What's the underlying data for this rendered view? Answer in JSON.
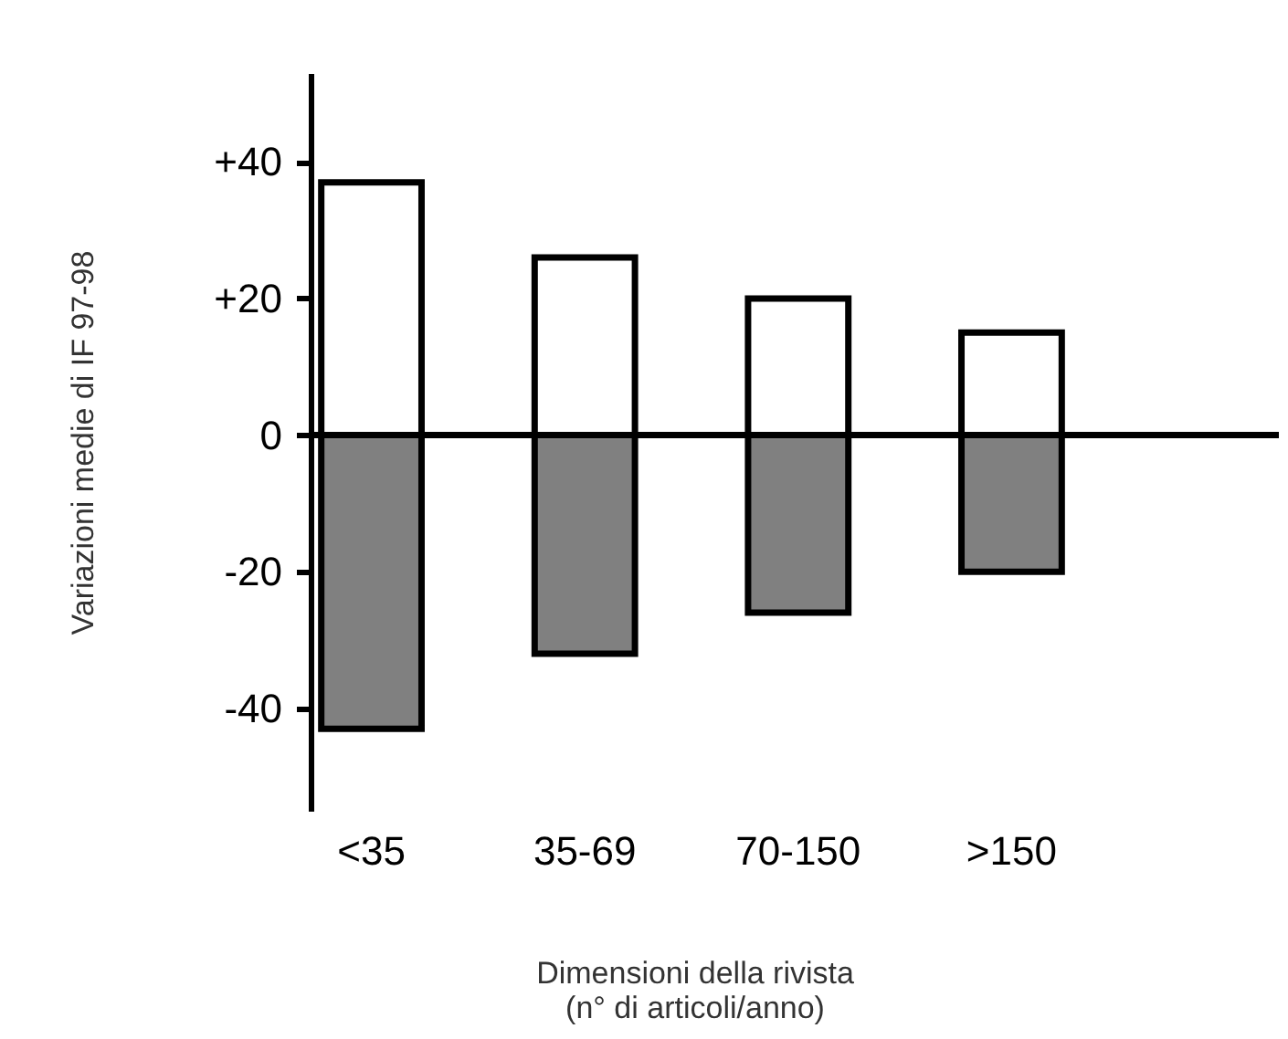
{
  "chart_data": {
    "type": "bar",
    "stacked": true,
    "xlabel": "Dimensioni della rivista\n(n° di articoli/anno)",
    "ylabel": "Variazioni medie di IF 97-98",
    "categories": [
      "<35",
      "35-69",
      "70-150",
      ">150"
    ],
    "series": [
      {
        "color": "#ffffff",
        "values": [
          37,
          26,
          20,
          15
        ]
      },
      {
        "color": "#808080",
        "values": [
          -43,
          -32,
          -26,
          -20
        ]
      }
    ],
    "ylim": [
      -55,
      53
    ],
    "yticks": [
      {
        "value": -40,
        "label": "-40"
      },
      {
        "value": -20,
        "label": "-20"
      },
      {
        "value": 0,
        "label": "0"
      },
      {
        "value": 20,
        "label": "+20"
      },
      {
        "value": 40,
        "label": "+40"
      }
    ],
    "ref_lines": [
      {
        "axis": "y",
        "value": 0
      }
    ],
    "grid": false,
    "legend": false
  }
}
